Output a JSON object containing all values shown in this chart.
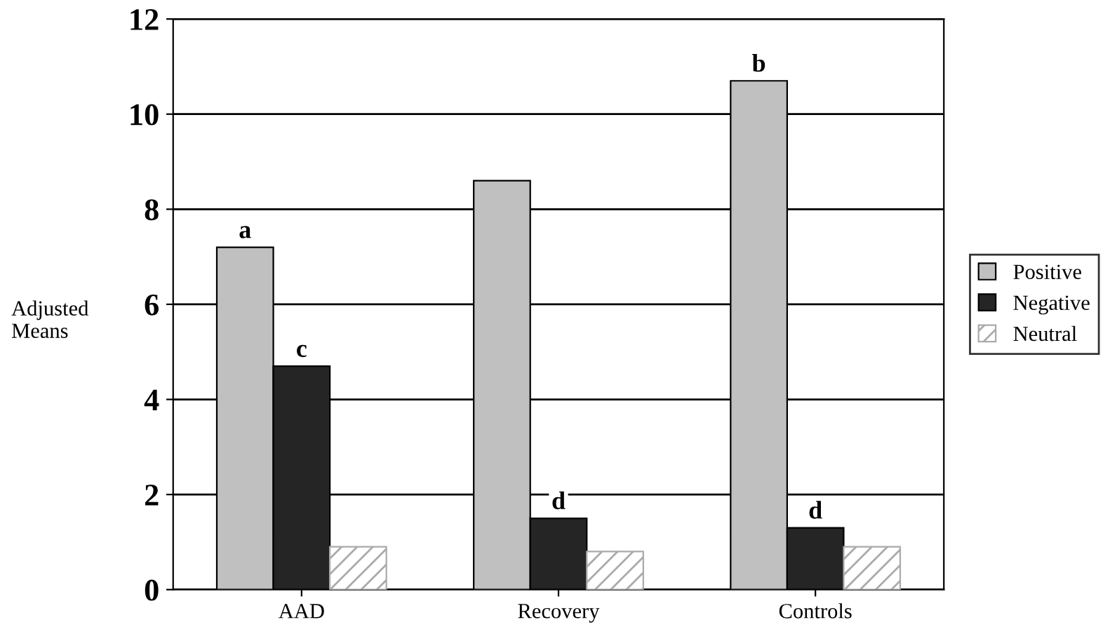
{
  "chart_data": {
    "type": "bar",
    "ylabel": "Adjusted\nMeans",
    "categories": [
      "AAD",
      "Recovery",
      "Controls"
    ],
    "series": [
      {
        "name": "Positive",
        "color": "#c0c0c0",
        "values": [
          7.2,
          8.6,
          10.7
        ],
        "value_labels": [
          "a",
          null,
          "b"
        ]
      },
      {
        "name": "Negative",
        "color": "#252525",
        "values": [
          4.7,
          1.5,
          1.3
        ],
        "value_labels": [
          "c",
          "d",
          "d"
        ]
      },
      {
        "name": "Neutral",
        "color": "#aaaaaa",
        "values": [
          0.9,
          0.8,
          0.9
        ]
      }
    ],
    "ylim": [
      0,
      12
    ],
    "yticks": [
      0,
      2,
      4,
      6,
      8,
      10,
      12
    ],
    "grid": "y",
    "legend": "right"
  }
}
